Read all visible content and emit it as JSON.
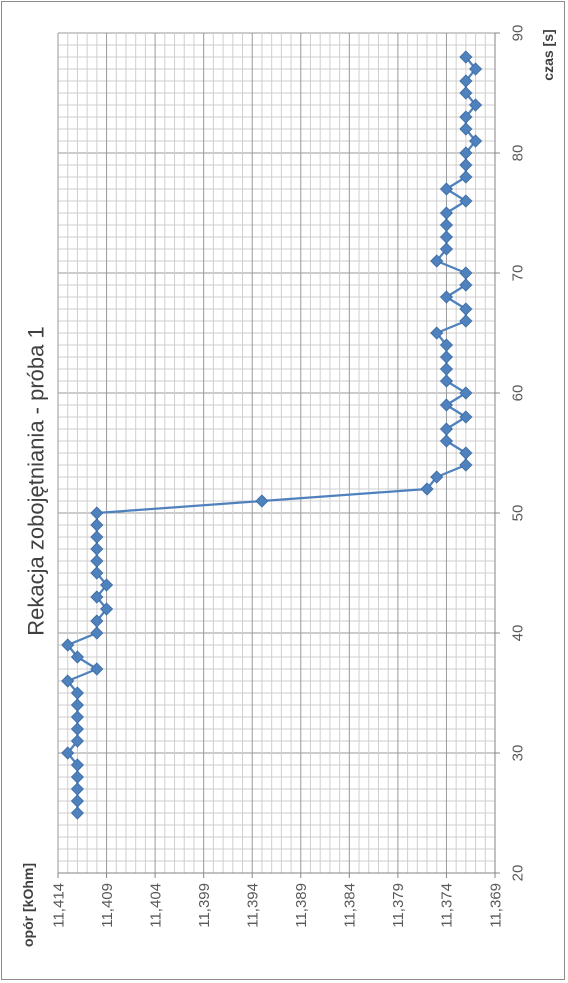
{
  "chart_data": {
    "type": "line",
    "title": "Rekacja zobojętniania - próba 1",
    "xlabel": "czas [s]",
    "ylabel": "opór [kOhm]",
    "xlim": [
      20,
      90
    ],
    "ylim": [
      11.369,
      11.414
    ],
    "y_reversed": true,
    "rotated_90_ccw": true,
    "x_ticks": [
      "20",
      "30",
      "40",
      "50",
      "60",
      "70",
      "80",
      "90"
    ],
    "y_ticks": [
      "11,414",
      "11,409",
      "11,404",
      "11,399",
      "11,394",
      "11,389",
      "11,384",
      "11,379",
      "11,374",
      "11,369"
    ],
    "grid": true,
    "legend": "none",
    "series_color": "#4f81bd",
    "marker": "diamond",
    "series": [
      {
        "x": [
          25,
          26,
          27,
          28,
          29,
          30,
          31,
          32,
          33,
          34,
          35,
          36,
          37,
          38,
          39,
          40,
          41,
          42,
          43,
          44,
          45,
          46,
          47,
          48,
          49,
          50,
          51,
          52,
          53,
          54,
          55,
          56,
          57,
          58,
          59,
          60,
          61,
          62,
          63,
          64,
          65,
          66,
          67,
          68,
          69,
          70,
          71,
          72,
          73,
          74,
          75,
          76,
          77,
          78,
          79,
          80,
          81,
          82,
          83,
          84,
          85,
          86,
          87,
          88
        ],
        "y": [
          11.412,
          11.412,
          11.412,
          11.412,
          11.412,
          11.413,
          11.412,
          11.412,
          11.412,
          11.412,
          11.412,
          11.413,
          11.41,
          11.412,
          11.413,
          11.41,
          11.41,
          11.409,
          11.41,
          11.409,
          11.41,
          11.41,
          11.41,
          11.41,
          11.41,
          11.41,
          11.393,
          11.376,
          11.375,
          11.372,
          11.372,
          11.374,
          11.374,
          11.372,
          11.374,
          11.372,
          11.374,
          11.374,
          11.374,
          11.374,
          11.375,
          11.372,
          11.372,
          11.374,
          11.372,
          11.372,
          11.375,
          11.374,
          11.374,
          11.374,
          11.374,
          11.372,
          11.374,
          11.372,
          11.372,
          11.372,
          11.371,
          11.372,
          11.372,
          11.371,
          11.372,
          11.372,
          11.371,
          11.372
        ]
      }
    ]
  }
}
